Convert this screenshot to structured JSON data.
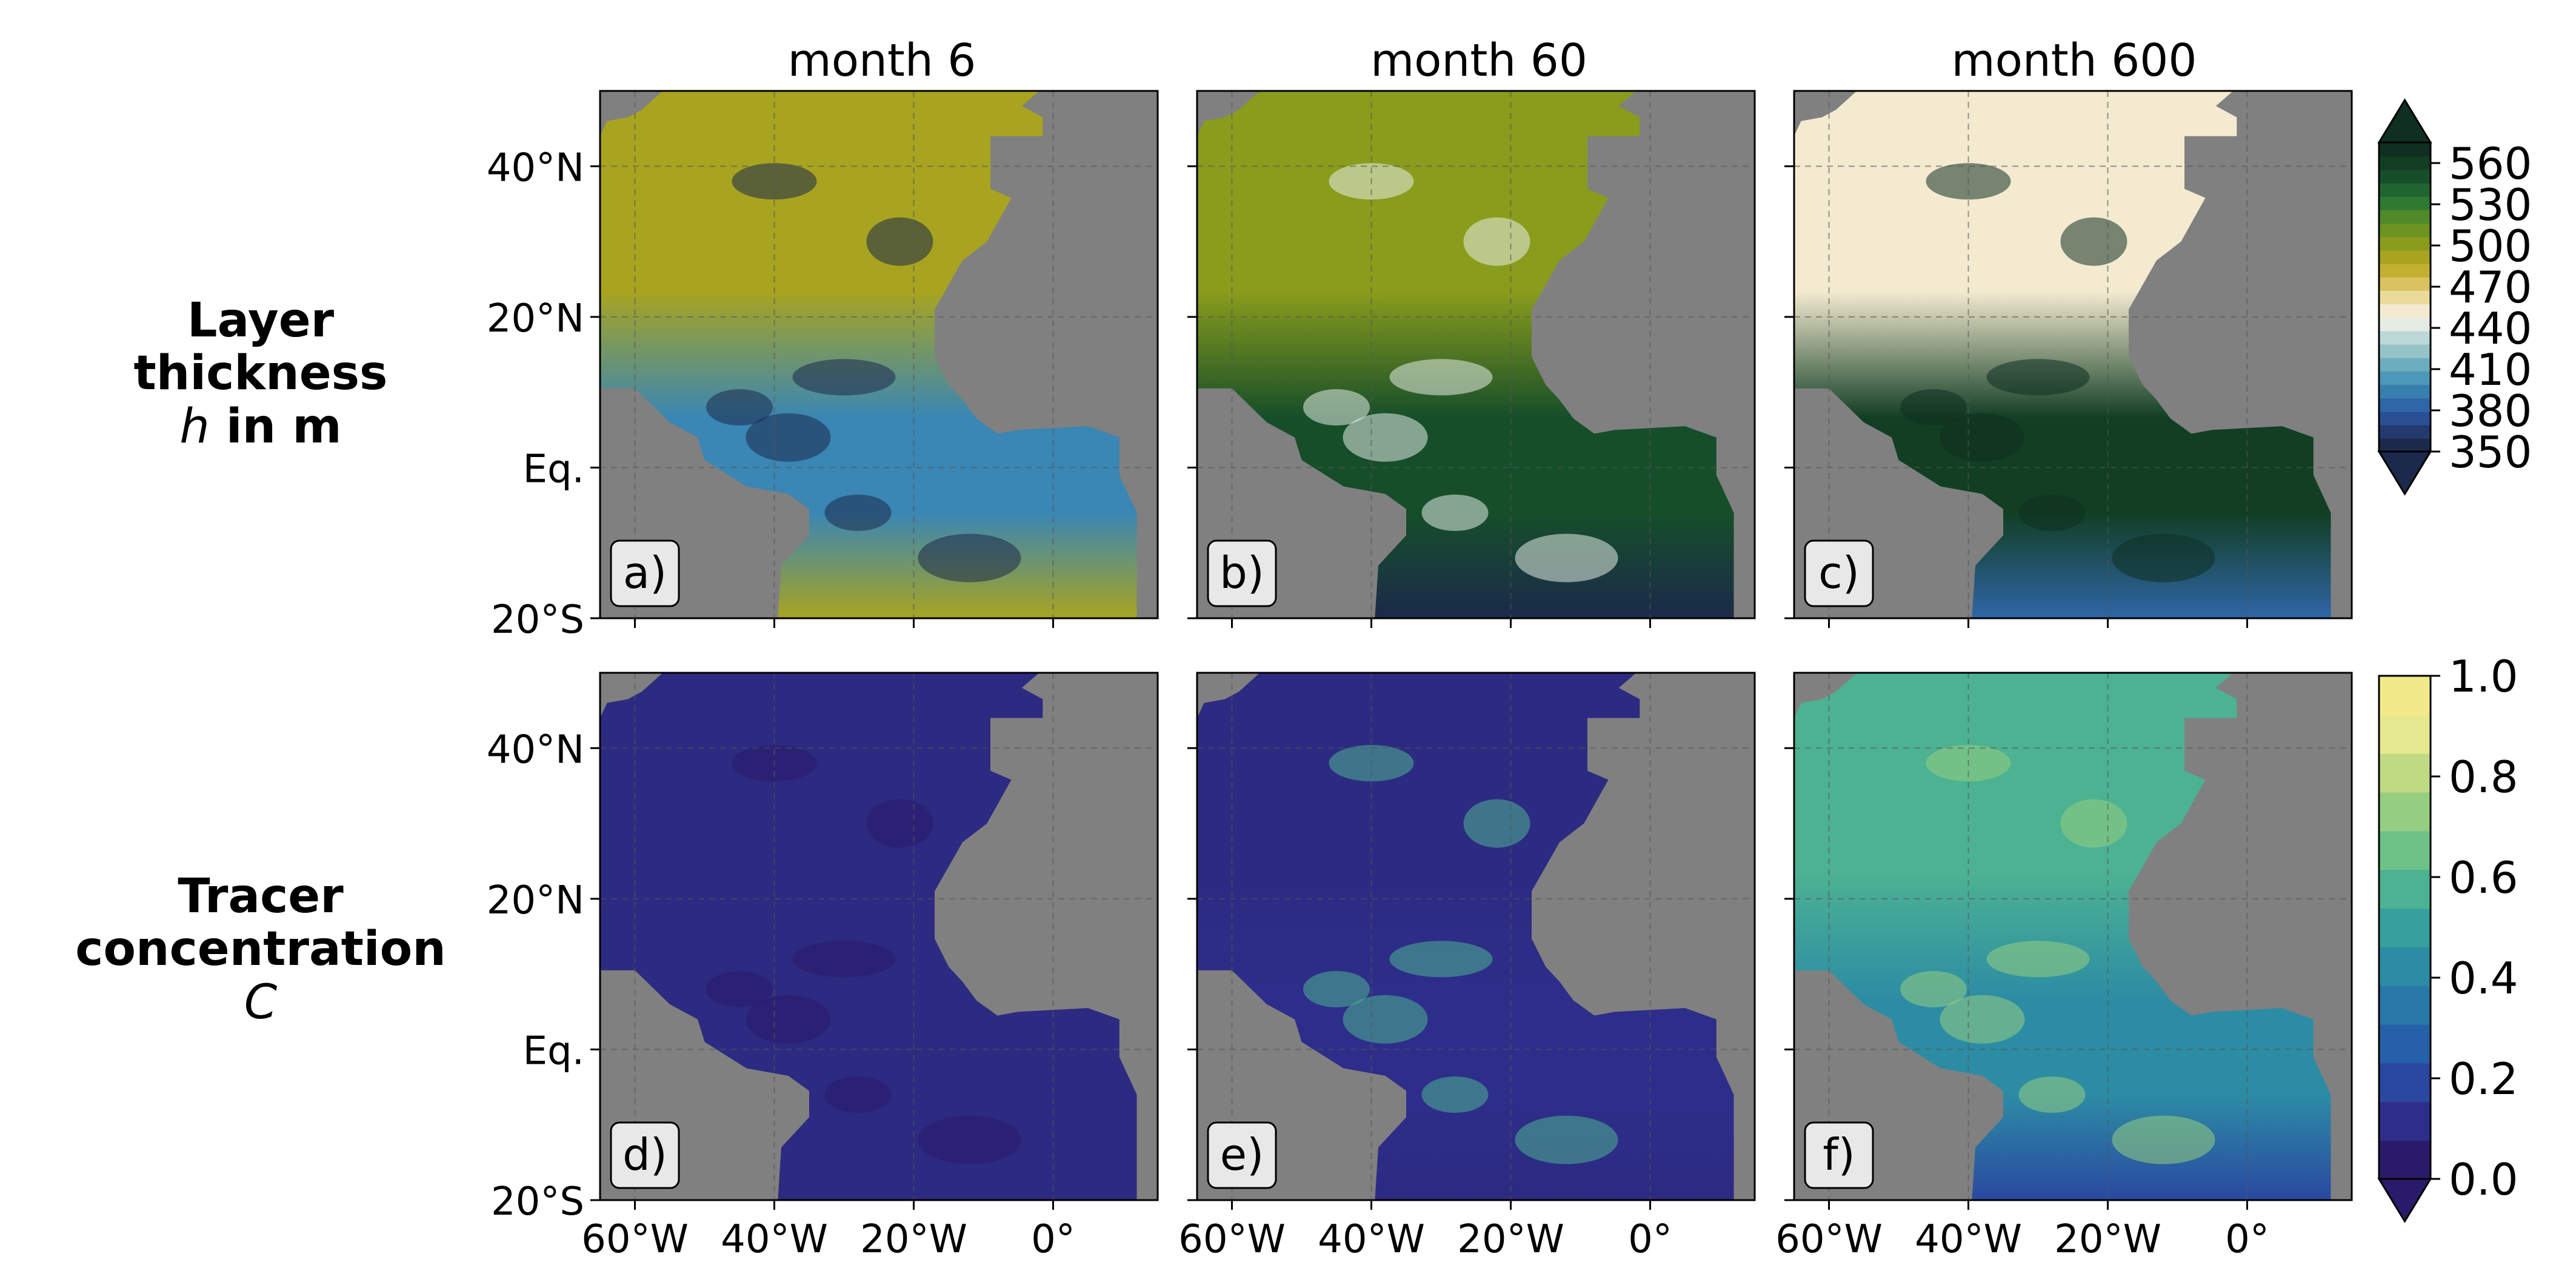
{
  "chart_data": {
    "type": "heatmap",
    "column_titles": [
      "month 6",
      "month 60",
      "month 600"
    ],
    "row_labels": [
      {
        "line1": "Layer",
        "line2": "thickness",
        "line3_italic": "h",
        "line3_rest": " in m"
      },
      {
        "line1": "Tracer",
        "line2": "concentration",
        "line3_italic": "C",
        "line3_rest": ""
      }
    ],
    "panel_labels": [
      "a)",
      "b)",
      "c)",
      "d)",
      "e)",
      "f)"
    ],
    "lat_ticks": [
      {
        "value": 40,
        "label": "40°N"
      },
      {
        "value": 20,
        "label": "20°N"
      },
      {
        "value": 0,
        "label": "Eq."
      },
      {
        "value": -20,
        "label": "20°S"
      }
    ],
    "lon_ticks": [
      {
        "value": -60,
        "label": "60°W"
      },
      {
        "value": -40,
        "label": "40°W"
      },
      {
        "value": -20,
        "label": "20°W"
      },
      {
        "value": 0,
        "label": "0°"
      }
    ],
    "lon_range": [
      -65,
      15
    ],
    "lat_range": [
      -20,
      50
    ],
    "grid": true,
    "land_color": "#808080",
    "colorbars": [
      {
        "variable": "h",
        "ticks": [
          350,
          380,
          410,
          440,
          470,
          500,
          530,
          560
        ],
        "range": [
          350,
          575
        ],
        "extend": "both",
        "colors": [
          "#1b2a4a",
          "#233a6e",
          "#2b4f95",
          "#2f66a8",
          "#3680b0",
          "#4b98b8",
          "#6cadbd",
          "#95c4c8",
          "#bcd8d8",
          "#e4ece4",
          "#f3ead0",
          "#eadb9a",
          "#d9c260",
          "#c2b030",
          "#a8a420",
          "#8a9c1c",
          "#6c9420",
          "#4f8a28",
          "#2f7a30",
          "#206530",
          "#164e2a",
          "#123e24",
          "#0f3020"
        ]
      },
      {
        "variable": "C",
        "ticks": [
          0.0,
          0.2,
          0.4,
          0.6,
          0.8,
          1.0
        ],
        "range": [
          0,
          1
        ],
        "extend": "min",
        "colors": [
          "#2a1a6a",
          "#2d2e8a",
          "#2a48a0",
          "#2660a8",
          "#2878a8",
          "#2c8ca4",
          "#35a09c",
          "#4cb292",
          "#6ec288",
          "#95ce80",
          "#c0da84",
          "#e6e890",
          "#f2e98a"
        ]
      }
    ],
    "panels": [
      {
        "label": "a)",
        "row": 0,
        "col": 0,
        "north_ocean_color": "#a8a420",
        "tropical_ocean_color": "#3a86b4",
        "south_ocean_color": "#a8a420",
        "anomaly_color": "#1b2a4a"
      },
      {
        "label": "b)",
        "row": 0,
        "col": 1,
        "north_ocean_color": "#8a9c1c",
        "tropical_ocean_color": "#164e2a",
        "south_ocean_color": "#1b2a4a",
        "anomaly_color": "#e4ece4"
      },
      {
        "label": "c)",
        "row": 0,
        "col": 2,
        "north_ocean_color": "#f3ead0",
        "tropical_ocean_color": "#123e24",
        "south_ocean_color": "#2f66a8",
        "anomaly_color": "#0f3020"
      },
      {
        "label": "d)",
        "row": 1,
        "col": 0,
        "north_ocean_color": "#2d2a82",
        "tropical_ocean_color": "#2d2a82",
        "south_ocean_color": "#2d2a82",
        "anomaly_color": "#2a1a6a"
      },
      {
        "label": "e)",
        "row": 1,
        "col": 1,
        "north_ocean_color": "#2d2a82",
        "tropical_ocean_color": "#2d2e8a",
        "south_ocean_color": "#2d2a82",
        "anomaly_color": "#4cb292"
      },
      {
        "label": "f)",
        "row": 1,
        "col": 2,
        "north_ocean_color": "#4cb292",
        "tropical_ocean_color": "#2c8ca4",
        "south_ocean_color": "#2a48a0",
        "anomaly_color": "#95ce80"
      }
    ]
  }
}
